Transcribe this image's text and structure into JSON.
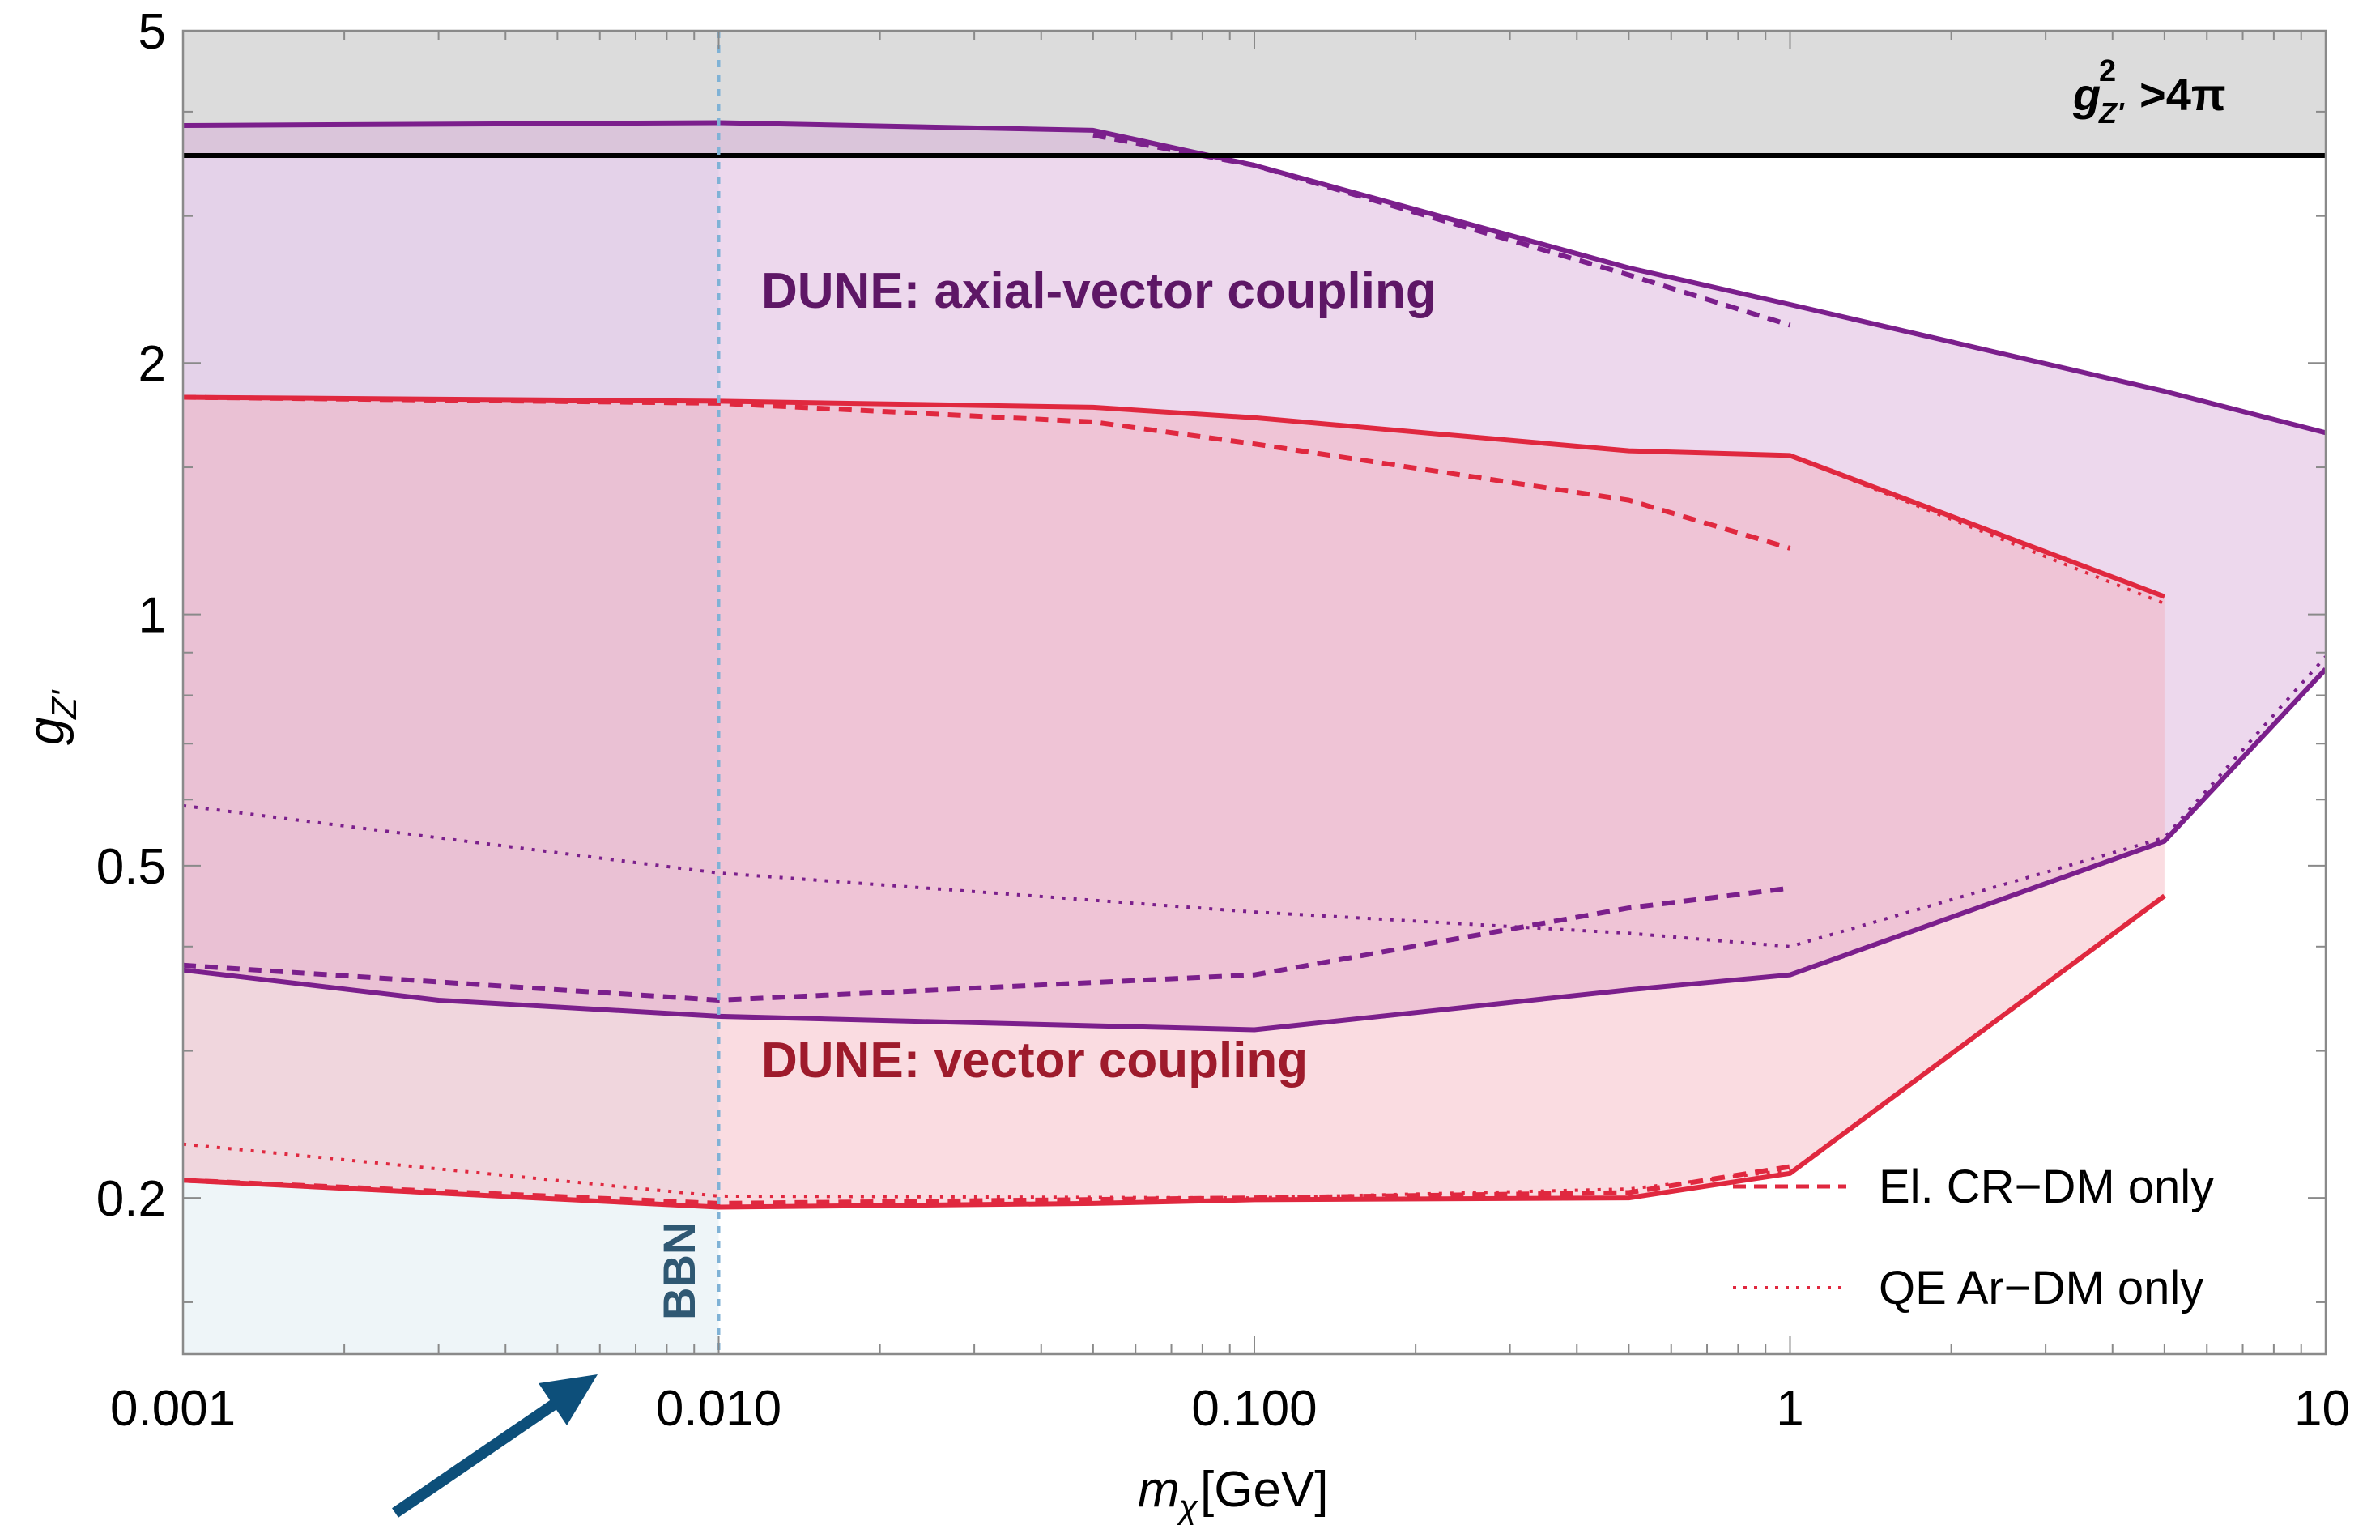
{
  "chart_data": {
    "type": "line",
    "xscale": "log",
    "yscale": "log",
    "xlim": [
      0.001,
      10
    ],
    "ylim": [
      0.13,
      5
    ],
    "xlabel": "m_χ[GeV]",
    "xlabel_main": "m",
    "xlabel_sub": "χ",
    "xlabel_unit": "[GeV]",
    "ylabel": "g_Z'",
    "ylabel_main": "g",
    "ylabel_sub": "Z'",
    "x_ticks": [
      {
        "value": 0.001,
        "label": "0.001"
      },
      {
        "value": 0.01,
        "label": "0.010"
      },
      {
        "value": 0.1,
        "label": "0.100"
      },
      {
        "value": 1,
        "label": "1"
      },
      {
        "value": 10,
        "label": "10"
      }
    ],
    "y_ticks": [
      {
        "value": 0.2,
        "label": "0.2"
      },
      {
        "value": 0.5,
        "label": "0.5"
      },
      {
        "value": 1,
        "label": "1"
      },
      {
        "value": 2,
        "label": "2"
      },
      {
        "value": 5,
        "label": "5"
      }
    ],
    "perturbativity": {
      "value": 3.5449,
      "label_main": "g",
      "label_sup": "2",
      "label_sub": "Z'",
      "label_rest": ">4π",
      "color": "#000000",
      "fill": "#dcdcdc"
    },
    "bbn": {
      "value": 0.01,
      "label": "BBN",
      "color": "#7fb2d6",
      "fill": "#eef5f8",
      "arrow_color": "#0d4f7a"
    },
    "regions": [
      {
        "name": "DUNE: axial-vector coupling",
        "color": "#7b1f8c",
        "label_color": "#5e1766",
        "fill": "#d7a8d6",
        "fill_opacity": 0.45,
        "solid_upper": {
          "x": [
            0.001,
            0.01,
            0.05,
            0.1,
            0.5,
            1,
            5,
            10
          ],
          "y": [
            3.85,
            3.88,
            3.8,
            3.45,
            2.6,
            2.35,
            1.85,
            1.65
          ]
        },
        "solid_lower": {
          "x": [
            0.001,
            0.003,
            0.01,
            0.1,
            0.5,
            1,
            5,
            10
          ],
          "y": [
            0.375,
            0.345,
            0.33,
            0.318,
            0.355,
            0.37,
            0.535,
            0.86
          ]
        },
        "dashed_upper": {
          "x": [
            0.05,
            0.1,
            0.5,
            1
          ],
          "y": [
            3.75,
            3.45,
            2.55,
            2.22
          ]
        },
        "dashed_lower": {
          "x": [
            0.001,
            0.01,
            0.1,
            0.5,
            1
          ],
          "y": [
            0.38,
            0.345,
            0.37,
            0.445,
            0.47
          ]
        },
        "dotted": {
          "x": [
            0.001,
            0.01,
            0.1,
            0.5,
            1,
            5,
            10
          ],
          "y": [
            0.59,
            0.49,
            0.44,
            0.415,
            0.4,
            0.54,
            0.89
          ]
        }
      },
      {
        "name": "DUNE: vector coupling",
        "color": "#e0283f",
        "label_color": "#9e1b2c",
        "fill": "#f2a7b3",
        "fill_opacity": 0.4,
        "solid_upper": {
          "x": [
            0.001,
            0.01,
            0.05,
            0.1,
            0.5,
            1,
            5
          ],
          "y": [
            1.82,
            1.8,
            1.77,
            1.72,
            1.57,
            1.55,
            1.05
          ]
        },
        "solid_lower": {
          "x": [
            0.001,
            0.01,
            0.05,
            0.1,
            0.5,
            1,
            5
          ],
          "y": [
            0.21,
            0.195,
            0.197,
            0.199,
            0.2,
            0.214,
            0.46
          ]
        },
        "dashed_upper": {
          "x": [
            0.001,
            0.01,
            0.05,
            0.1,
            0.5,
            1
          ],
          "y": [
            1.82,
            1.79,
            1.7,
            1.6,
            1.37,
            1.2
          ]
        },
        "dashed_lower": {
          "x": [
            0.001,
            0.01,
            0.1,
            0.5,
            1
          ],
          "y": [
            0.21,
            0.197,
            0.2,
            0.203,
            0.218
          ]
        },
        "dotted_upper": {
          "x": [
            1,
            5
          ],
          "y": [
            1.55,
            1.03
          ]
        },
        "dotted_lower": {
          "x": [
            0.001,
            0.01,
            0.1,
            0.5,
            1
          ],
          "y": [
            0.232,
            0.201,
            0.2,
            0.205,
            0.216
          ]
        }
      }
    ],
    "legend": {
      "position": "bottom-right",
      "entries": [
        {
          "label": "El. CR−DM only",
          "style": "dashed",
          "color": "#e0283f"
        },
        {
          "label": "QE Ar−DM only",
          "style": "dotted",
          "color": "#e0283f"
        }
      ]
    },
    "grid": false
  }
}
